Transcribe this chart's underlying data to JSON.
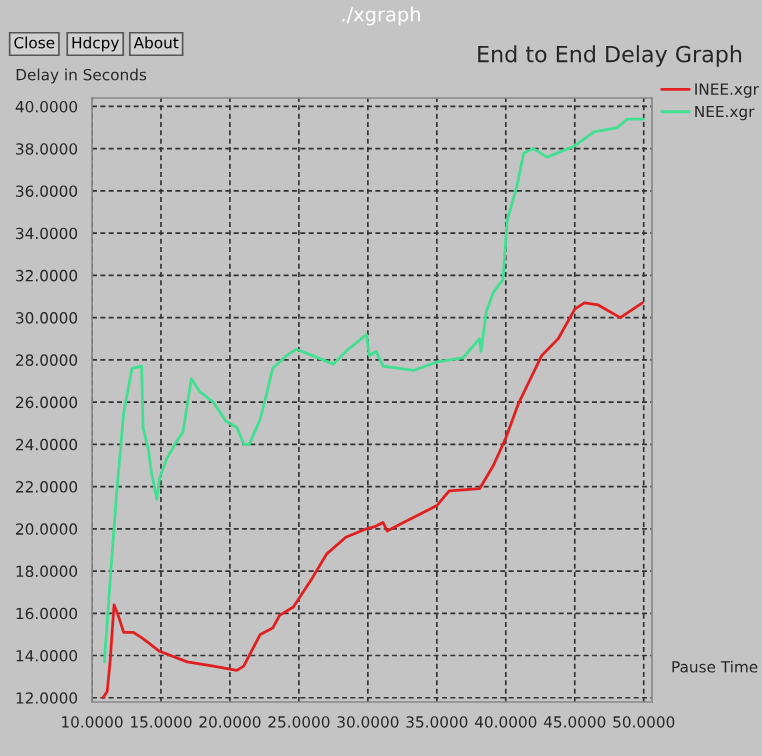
{
  "chart_data": {
    "type": "line",
    "title": "End to End Delay Graph",
    "ylabel": "Delay in Seconds",
    "xlabel": "Pause Time",
    "annotations": [
      "./xgraph",
      "Close",
      "Hdcpy",
      "About"
    ],
    "xlim": [
      10,
      50.6
    ],
    "ylim": [
      11.8,
      40.4
    ],
    "xticks": [
      {
        "value": 10,
        "label": "10.0000"
      },
      {
        "value": 15,
        "label": "15.0000"
      },
      {
        "value": 20,
        "label": "20.0000"
      },
      {
        "value": 25,
        "label": "25.0000"
      },
      {
        "value": 30,
        "label": "30.0000"
      },
      {
        "value": 35,
        "label": "35.0000"
      },
      {
        "value": 40,
        "label": "40.0000"
      },
      {
        "value": 45,
        "label": "45.0000"
      },
      {
        "value": 50,
        "label": "50.0000"
      }
    ],
    "yticks": [
      {
        "value": 12,
        "label": "12.0000"
      },
      {
        "value": 14,
        "label": "14.0000"
      },
      {
        "value": 16,
        "label": "16.0000"
      },
      {
        "value": 18,
        "label": "18.0000"
      },
      {
        "value": 20,
        "label": "20.0000"
      },
      {
        "value": 22,
        "label": "22.0000"
      },
      {
        "value": 24,
        "label": "24.0000"
      },
      {
        "value": 26,
        "label": "26.0000"
      },
      {
        "value": 28,
        "label": "28.0000"
      },
      {
        "value": 30,
        "label": "30.0000"
      },
      {
        "value": 32,
        "label": "32.0000"
      },
      {
        "value": 34,
        "label": "34.0000"
      },
      {
        "value": 36,
        "label": "36.0000"
      },
      {
        "value": 38,
        "label": "38.0000"
      },
      {
        "value": 40,
        "label": "40.0000"
      }
    ],
    "grid": true,
    "legend": "top right",
    "line_style": "solid",
    "marker": "none",
    "series": [
      {
        "name": "INEE.xgr",
        "color": "#e02020",
        "x": [
          10.8,
          11.1,
          11.3,
          11.6,
          11.9,
          12.3,
          13.0,
          13.7,
          14.9,
          16.9,
          18.8,
          20.5,
          21.0,
          22.2,
          23.1,
          23.6,
          24.6,
          26.0,
          27.0,
          28.4,
          29.9,
          30.5,
          31.1,
          31.4,
          32.3,
          33.8,
          35.0,
          35.9,
          38.1,
          39.1,
          40.0,
          40.9,
          42.6,
          43.8,
          45.0,
          45.7,
          46.7,
          48.3,
          49.9
        ],
        "values": [
          12.0,
          12.3,
          13.6,
          16.4,
          15.9,
          15.1,
          15.1,
          14.8,
          14.2,
          13.7,
          13.5,
          13.3,
          13.5,
          15.0,
          15.3,
          15.9,
          16.3,
          17.7,
          18.8,
          19.6,
          20.0,
          20.1,
          20.3,
          19.9,
          20.2,
          20.7,
          21.1,
          21.8,
          21.9,
          23.0,
          24.3,
          25.9,
          28.2,
          29.0,
          30.4,
          30.7,
          30.6,
          30.0,
          30.7
        ]
      },
      {
        "name": "NEE.xgr",
        "color": "#40e090",
        "x": [
          10.9,
          11.3,
          11.8,
          12.3,
          12.9,
          13.6,
          13.7,
          14.1,
          14.3,
          14.7,
          14.9,
          15.4,
          16.1,
          16.6,
          17.2,
          17.8,
          18.8,
          19.7,
          20.5,
          21.0,
          21.4,
          22.2,
          22.7,
          23.1,
          24.1,
          24.8,
          26.0,
          27.5,
          28.4,
          29.9,
          30.1,
          30.6,
          31.1,
          32.3,
          33.3,
          35.0,
          36.9,
          38.1,
          38.2,
          38.6,
          39.1,
          39.8,
          40.1,
          40.8,
          41.3,
          42.0,
          43.0,
          44.9,
          46.4,
          48.1,
          48.8,
          50.0
        ],
        "values": [
          13.7,
          17.4,
          21.8,
          25.5,
          27.6,
          27.7,
          24.8,
          23.7,
          22.7,
          21.4,
          22.4,
          23.3,
          24.1,
          24.6,
          27.1,
          26.5,
          26.0,
          25.1,
          24.8,
          24.0,
          24.0,
          25.2,
          26.5,
          27.6,
          28.2,
          28.5,
          28.2,
          27.8,
          28.4,
          29.2,
          28.2,
          28.4,
          27.7,
          27.6,
          27.5,
          27.9,
          28.1,
          29.0,
          28.4,
          30.3,
          31.2,
          31.8,
          34.6,
          36.2,
          37.8,
          38.0,
          37.6,
          38.1,
          38.8,
          39.0,
          39.4,
          39.4
        ]
      }
    ]
  }
}
